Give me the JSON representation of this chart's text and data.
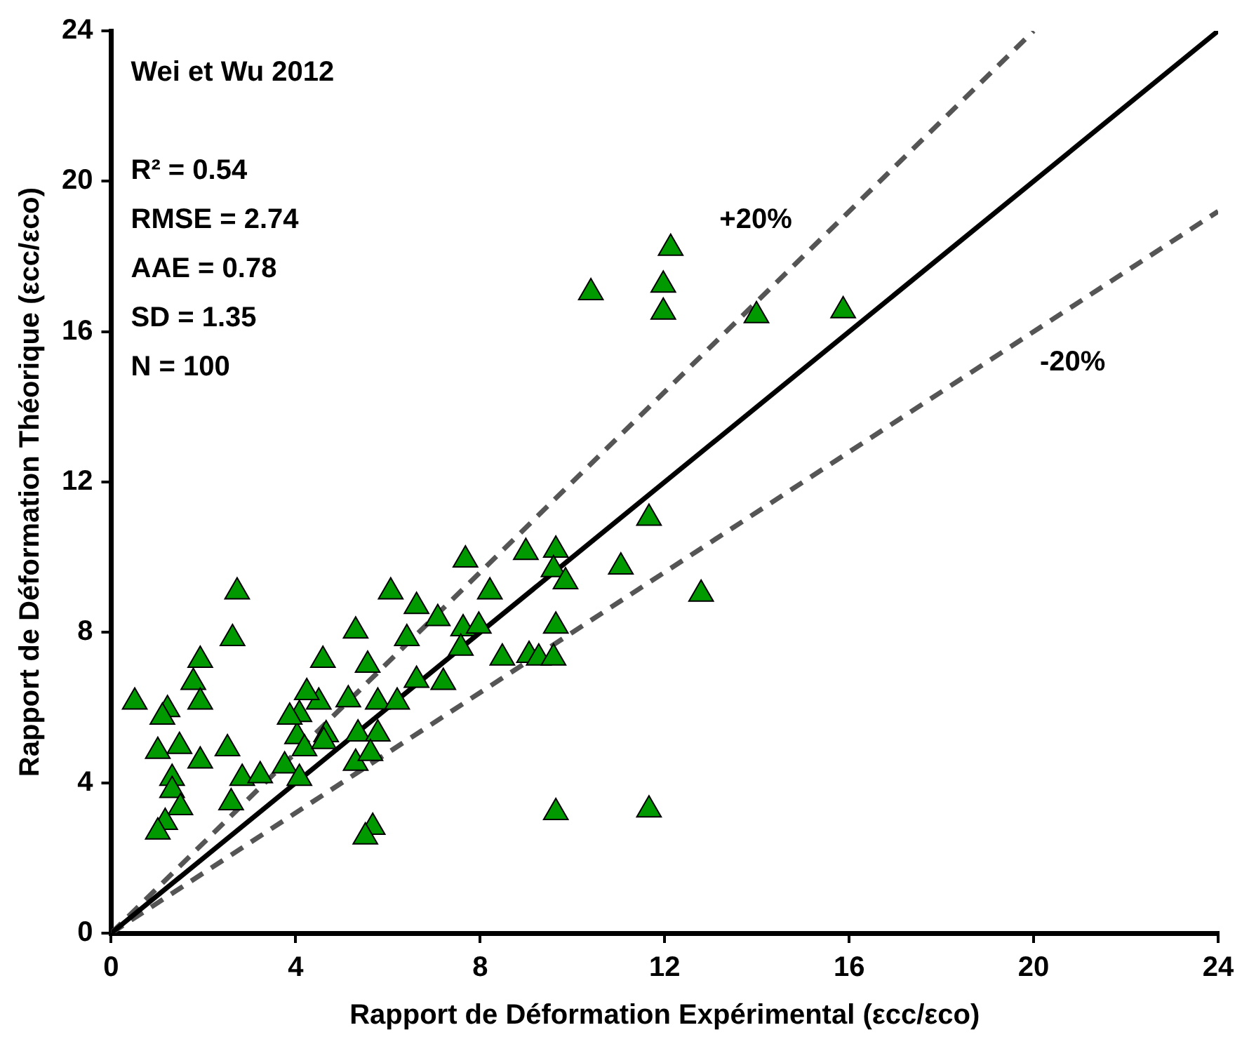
{
  "chart_data": {
    "type": "scatter",
    "xlabel": "Rapport de Déformation Expérimental (εcc/εco)",
    "ylabel": "Rapport de Déformation Théorique (εcc/εco)",
    "xlim": [
      0,
      24
    ],
    "ylim": [
      0,
      24
    ],
    "xticks": [
      0,
      4,
      8,
      12,
      16,
      20,
      24
    ],
    "yticks": [
      0,
      4,
      8,
      12,
      16,
      20,
      24
    ],
    "grid": false,
    "legend": false,
    "annotations": [
      "Wei et Wu 2012",
      "R² = 0.54",
      "RMSE = 2.74",
      "AAE = 0.78",
      "SD = 1.35",
      "N = 100"
    ],
    "series": [
      {
        "type": "line",
        "color": "#000000",
        "line_style": "solid",
        "marker": "none",
        "x": [
          0,
          24
        ],
        "values": [
          0,
          24
        ]
      },
      {
        "type": "line",
        "name": "+20%",
        "color": "#555555",
        "line_style": "dashed",
        "marker": "none",
        "x": [
          0,
          20
        ],
        "values": [
          0,
          24
        ]
      },
      {
        "type": "line",
        "name": "-20%",
        "color": "#555555",
        "line_style": "dashed",
        "marker": "none",
        "x": [
          0,
          24
        ],
        "values": [
          0,
          19.2
        ]
      },
      {
        "type": "scatter",
        "color": "#009900",
        "marker": "triangle",
        "x": [
          2.73,
          2.63,
          1.93,
          1.78,
          1.93,
          0.51,
          1.22,
          1.11,
          1.01,
          1.48,
          1.93,
          2.52,
          1.32,
          1.32,
          1.5,
          1.17,
          1.01,
          2.84,
          2.6,
          3.23,
          4.59,
          5.3,
          6.06,
          6.62,
          5.56,
          6.41,
          4.08,
          4.5,
          5.14,
          5.78,
          6.2,
          6.62,
          4.03,
          4.66,
          5.35,
          5.78,
          4.19,
          3.76,
          4.08,
          4.61,
          5.3,
          5.62,
          5.67,
          5.51,
          4.24,
          3.87,
          7.68,
          8.99,
          9.64,
          9.59,
          9.85,
          11.05,
          12.79,
          8.21,
          7.08,
          7.63,
          7.97,
          7.58,
          9.64,
          8.48,
          9.06,
          9.27,
          9.59,
          7.2,
          9.64,
          11.66,
          12.13,
          10.4,
          11.97,
          11.97,
          13.99,
          15.87,
          11.66
        ],
        "values": [
          9.08,
          7.84,
          7.26,
          6.67,
          6.15,
          6.15,
          5.95,
          5.75,
          4.84,
          4.97,
          4.58,
          4.91,
          4.12,
          3.8,
          3.34,
          2.95,
          2.69,
          4.12,
          3.47,
          4.19,
          7.26,
          8.04,
          9.08,
          8.69,
          7.13,
          7.84,
          5.82,
          6.15,
          6.21,
          6.15,
          6.15,
          6.73,
          5.23,
          5.28,
          5.3,
          5.3,
          4.91,
          4.45,
          4.12,
          5.1,
          4.52,
          4.78,
          2.82,
          2.56,
          6.4,
          5.75,
          9.93,
          10.13,
          10.19,
          9.67,
          9.35,
          9.74,
          9.02,
          9.08,
          8.37,
          8.1,
          8.17,
          7.58,
          8.17,
          7.32,
          7.39,
          7.32,
          7.32,
          6.67,
          3.21,
          3.28,
          18.22,
          17.04,
          17.24,
          16.52,
          16.43,
          16.56,
          11.04
        ]
      }
    ]
  }
}
